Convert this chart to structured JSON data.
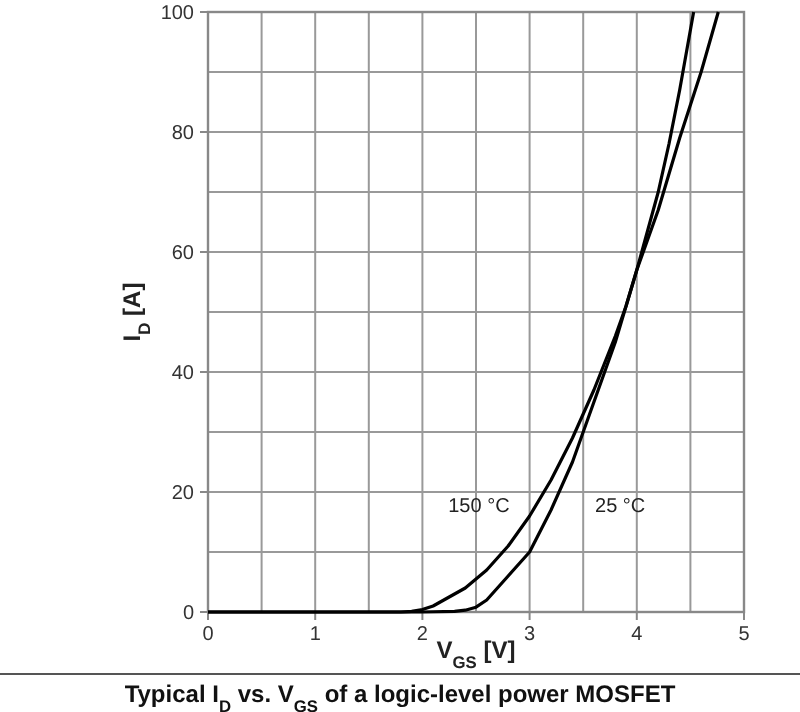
{
  "chart_data": {
    "type": "line",
    "title": "Typical I$_{D}$ vs. V$_{GS}$ of a logic-level power MOSFET",
    "xlabel": "V$_{GS}$ [V]",
    "ylabel": "I$_{D}$ [A]",
    "xlim": [
      0,
      5
    ],
    "xticks": [
      0,
      1,
      2,
      3,
      4,
      5
    ],
    "ylim": [
      0,
      100
    ],
    "yticks": [
      0,
      20,
      40,
      60,
      80,
      100
    ],
    "grid": true,
    "line_style": "solid",
    "series": [
      {
        "name": "150 °C",
        "color": "#000000",
        "x": [
          0,
          1,
          1.8,
          1.9,
          2.0,
          2.1,
          2.2,
          2.4,
          2.5,
          2.6,
          2.8,
          3.0,
          3.2,
          3.4,
          3.6,
          3.8,
          3.9,
          4.0,
          4.2,
          4.4,
          4.6,
          4.76
        ],
        "values": [
          0,
          0,
          0,
          0.1,
          0.4,
          1,
          2,
          4,
          5.5,
          7,
          11,
          16,
          22,
          29,
          37,
          46,
          51,
          57,
          67,
          79,
          90,
          100
        ]
      },
      {
        "name": "25 °C",
        "color": "#000000",
        "x": [
          0,
          1,
          2,
          2.3,
          2.4,
          2.5,
          2.6,
          2.8,
          3.0,
          3.2,
          3.4,
          3.5,
          3.6,
          3.8,
          3.9,
          4.0,
          4.2,
          4.3,
          4.4,
          4.53
        ],
        "values": [
          0,
          0,
          0,
          0.1,
          0.3,
          0.8,
          2,
          6,
          10,
          17,
          25,
          30,
          35,
          45,
          51,
          57,
          70,
          78,
          87,
          100
        ]
      }
    ]
  }
}
